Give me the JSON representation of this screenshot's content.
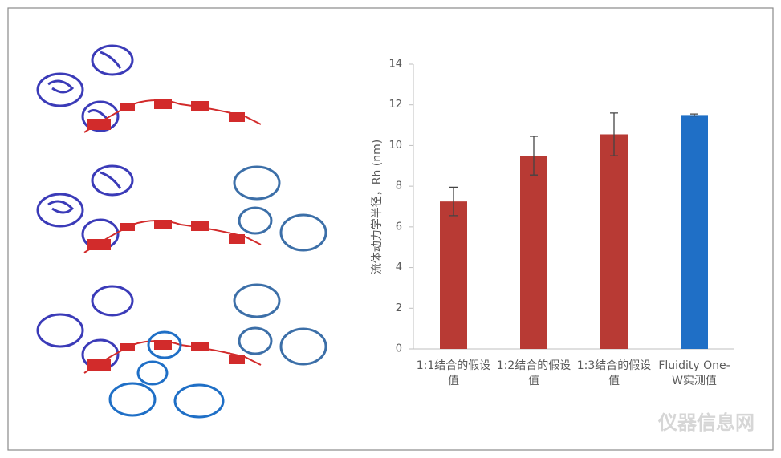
{
  "chart_data": {
    "type": "bar",
    "y_label": "流体动力学半径，Rh (nm)",
    "categories": [
      "1:1结合的假设值",
      "1:2结合的假设值",
      "1:3结合的假设值",
      "Fluidity One-W实测值"
    ],
    "values": [
      7.25,
      9.5,
      10.55,
      11.5
    ],
    "errors": [
      0.7,
      0.95,
      1.05,
      0.05
    ],
    "colors": [
      "#b83a34",
      "#b83a34",
      "#b83a34",
      "#1f6fc6"
    ],
    "ylim": [
      0,
      14
    ],
    "yticks": [
      0,
      2,
      4,
      6,
      8,
      10,
      12,
      14
    ],
    "grid": false
  },
  "watermark": "仪器信息网"
}
